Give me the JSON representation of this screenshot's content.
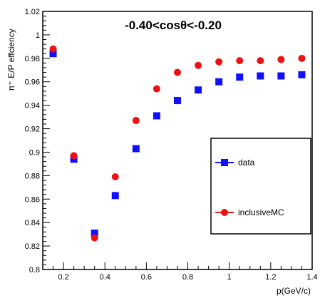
{
  "chart_data": {
    "type": "scatter",
    "title": "-0.40<cosθ<-0.20",
    "xlabel": "p(GeV/c)",
    "ylabel": "π⁺ E/P effciency",
    "xlim": [
      0.1,
      1.4
    ],
    "ylim": [
      0.8,
      1.02
    ],
    "x_ticks": [
      "0.2",
      "0.4",
      "0.6",
      "0.8",
      "1",
      "1.2",
      "1.4"
    ],
    "y_ticks": [
      "0.8",
      "0.82",
      "0.84",
      "0.86",
      "0.88",
      "0.9",
      "0.92",
      "0.94",
      "0.96",
      "0.98",
      "1",
      "1.02"
    ],
    "legend_position": "right",
    "series": [
      {
        "name": "data",
        "marker": "square",
        "color": "#1010ff",
        "x": [
          0.15,
          0.25,
          0.35,
          0.45,
          0.55,
          0.65,
          0.75,
          0.85,
          0.95,
          1.05,
          1.15,
          1.25,
          1.35
        ],
        "y": [
          0.984,
          0.894,
          0.831,
          0.863,
          0.903,
          0.931,
          0.944,
          0.953,
          0.96,
          0.964,
          0.965,
          0.965,
          0.966
        ]
      },
      {
        "name": "inclusiveMC",
        "marker": "circle",
        "color": "#ee1111",
        "x": [
          0.15,
          0.25,
          0.35,
          0.45,
          0.55,
          0.65,
          0.75,
          0.85,
          0.95,
          1.05,
          1.15,
          1.25,
          1.35
        ],
        "y": [
          0.988,
          0.897,
          0.827,
          0.879,
          0.927,
          0.954,
          0.968,
          0.974,
          0.977,
          0.978,
          0.978,
          0.979,
          0.98
        ]
      }
    ]
  }
}
